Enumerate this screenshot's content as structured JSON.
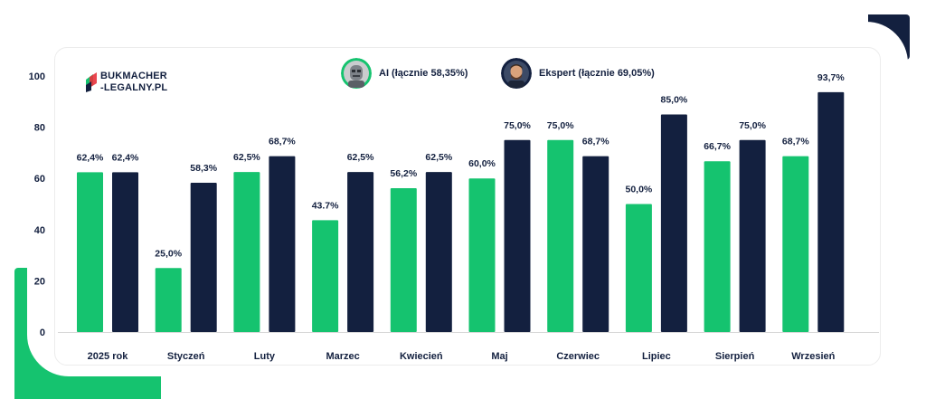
{
  "brand": {
    "line1": "BUKMACHER",
    "line2": "-LEGALNY.PL"
  },
  "legend": [
    {
      "label": "AI (łącznie 58,35%)",
      "color": "#15c36f",
      "icon": "robot-avatar-icon"
    },
    {
      "label": "Ekspert (łącznie 69,05%)",
      "color": "#13203f",
      "icon": "expert-avatar-icon"
    }
  ],
  "chart_data": {
    "type": "bar",
    "title": "",
    "xlabel": "",
    "ylabel": "",
    "ylim": [
      0,
      100
    ],
    "yticks": [
      0,
      20,
      40,
      60,
      80,
      100
    ],
    "grid": false,
    "legend_position": "top",
    "categories": [
      "2025 rok",
      "Styczeń",
      "Luty",
      "Marzec",
      "Kwiecień",
      "Maj",
      "Czerwiec",
      "Lipiec",
      "Sierpień",
      "Wrzesień"
    ],
    "series": [
      {
        "name": "AI (łącznie 58,35%)",
        "color": "#15c36f",
        "values": [
          62.4,
          25.0,
          62.5,
          43.7,
          56.2,
          60.0,
          75.0,
          50.0,
          66.7,
          68.7
        ],
        "labels": [
          "62,4%",
          "25,0%",
          "62,5%",
          "43.7%",
          "56,2%",
          "60,0%",
          "75,0%",
          "50,0%",
          "66,7%",
          "68,7%"
        ]
      },
      {
        "name": "Ekspert (łącznie 69,05%)",
        "color": "#13203f",
        "values": [
          62.4,
          58.3,
          68.7,
          62.5,
          62.5,
          75.0,
          68.7,
          85.0,
          75.0,
          93.7
        ],
        "labels": [
          "62,4%",
          "58,3%",
          "68,7%",
          "62,5%",
          "62,5%",
          "75,0%",
          "68,7%",
          "85,0%",
          "75,0%",
          "93,7%"
        ]
      }
    ]
  }
}
